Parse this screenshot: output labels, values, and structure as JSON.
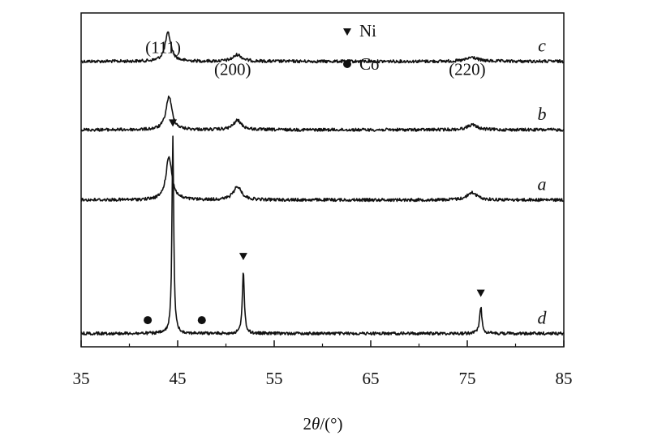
{
  "chart_data": {
    "type": "line",
    "xlabel_parts": [
      "2",
      "θ",
      "/(°)"
    ],
    "xlim": [
      35,
      85
    ],
    "xticks": [
      35,
      45,
      55,
      65,
      75,
      85
    ],
    "legend": {
      "placement": "top-center",
      "entries": [
        {
          "marker": "triangle-down",
          "label": "Ni"
        },
        {
          "marker": "circle",
          "label": "Co"
        }
      ]
    },
    "series": [
      {
        "name": "c",
        "baseline": 0.145,
        "peaks": [
          {
            "x": 44.0,
            "height": 0.085,
            "width": 0.55
          },
          {
            "x": 51.2,
            "height": 0.02,
            "width": 0.8
          },
          {
            "x": 75.5,
            "height": 0.012,
            "width": 1.0
          }
        ]
      },
      {
        "name": "b",
        "baseline": 0.35,
        "peaks": [
          {
            "x": 44.1,
            "height": 0.1,
            "width": 0.55
          },
          {
            "x": 51.2,
            "height": 0.028,
            "width": 0.75
          },
          {
            "x": 75.5,
            "height": 0.015,
            "width": 0.9
          }
        ]
      },
      {
        "name": "a",
        "baseline": 0.56,
        "peaks": [
          {
            "x": 44.1,
            "height": 0.13,
            "width": 0.55
          },
          {
            "x": 51.2,
            "height": 0.04,
            "width": 0.75
          },
          {
            "x": 75.5,
            "height": 0.022,
            "width": 0.9
          }
        ]
      },
      {
        "name": "d",
        "baseline": 0.96,
        "peaks": [
          {
            "x": 44.5,
            "height": 0.59,
            "width": 0.16
          },
          {
            "x": 51.8,
            "height": 0.19,
            "width": 0.18
          },
          {
            "x": 76.4,
            "height": 0.08,
            "width": 0.22
          }
        ]
      }
    ],
    "peak_labels": [
      {
        "x": 44.0,
        "level": 0.135,
        "text": "(111)"
      },
      {
        "x": 51.2,
        "level": 0.2,
        "text": "(200)"
      },
      {
        "x": 75.5,
        "level": 0.2,
        "text": "(220)"
      }
    ],
    "phase_markers": [
      {
        "series": "d",
        "x": 44.5,
        "marker": "triangle-down",
        "phase": "Ni"
      },
      {
        "series": "d",
        "x": 51.8,
        "marker": "triangle-down",
        "phase": "Ni"
      },
      {
        "series": "d",
        "x": 76.4,
        "marker": "triangle-down",
        "phase": "Ni"
      },
      {
        "series": "d",
        "x": 41.9,
        "marker": "circle",
        "phase": "Co"
      },
      {
        "series": "d",
        "x": 47.5,
        "marker": "circle",
        "phase": "Co"
      }
    ]
  }
}
